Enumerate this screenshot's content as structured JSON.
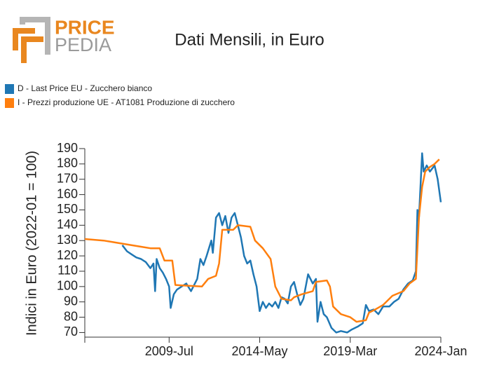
{
  "logo": {
    "top": "PRICE",
    "bottom": "PEDIA"
  },
  "chart_data": {
    "type": "line",
    "title": "Dati Mensili, in Euro",
    "y_label": "Indici in Euro (2022-01 = 100)",
    "xlim": [
      "2005-01",
      "2024-01"
    ],
    "xticks": [
      {
        "value": "2009-07",
        "label": "2009-Jul"
      },
      {
        "value": "2014-05",
        "label": "2014-May"
      },
      {
        "value": "2019-03",
        "label": "2019-Mar"
      },
      {
        "value": "2024-01",
        "label": "2024-Jan"
      }
    ],
    "ylim": [
      67,
      190
    ],
    "yticks": [
      70,
      80,
      90,
      100,
      110,
      120,
      130,
      140,
      150,
      160,
      170,
      180,
      190
    ],
    "grid": false,
    "legend": "top-left",
    "series": [
      {
        "name": "D - Last Price EU - Zucchero bianco",
        "color": "#1f77b4",
        "x": [
          "2007-01",
          "2007-04",
          "2007-07",
          "2007-10",
          "2008-01",
          "2008-04",
          "2008-07",
          "2008-09",
          "2008-10",
          "2008-11",
          "2009-01",
          "2009-03",
          "2009-05",
          "2009-07",
          "2009-08",
          "2009-10",
          "2009-12",
          "2010-03",
          "2010-06",
          "2010-09",
          "2011-01",
          "2011-03",
          "2011-05",
          "2011-07",
          "2011-10",
          "2011-11",
          "2012-01",
          "2012-03",
          "2012-05",
          "2012-07",
          "2012-09",
          "2012-11",
          "2013-01",
          "2013-03",
          "2013-05",
          "2013-07",
          "2013-09",
          "2013-11",
          "2014-01",
          "2014-03",
          "2014-05",
          "2014-07",
          "2014-09",
          "2014-11",
          "2015-01",
          "2015-03",
          "2015-05",
          "2015-07",
          "2015-09",
          "2015-11",
          "2016-01",
          "2016-03",
          "2016-05",
          "2016-07",
          "2016-09",
          "2016-12",
          "2017-03",
          "2017-05",
          "2017-06",
          "2017-08",
          "2017-10",
          "2017-12",
          "2018-03",
          "2018-06",
          "2018-09",
          "2019-01",
          "2019-04",
          "2019-08",
          "2019-11",
          "2020-01",
          "2020-03",
          "2020-06",
          "2020-09",
          "2020-12",
          "2021-04",
          "2021-07",
          "2021-10",
          "2022-01",
          "2022-04",
          "2022-07",
          "2022-09",
          "2022-10",
          "2022-11",
          "2023-01",
          "2023-02",
          "2023-04",
          "2023-06",
          "2023-09",
          "2023-11",
          "2024-01"
        ],
        "values": [
          127,
          123,
          121,
          119,
          118,
          116,
          112,
          115,
          97,
          118,
          112,
          109,
          105,
          100,
          86,
          95,
          98,
          100,
          102,
          97,
          105,
          118,
          114,
          120,
          130,
          122,
          145,
          148,
          140,
          146,
          135,
          145,
          148,
          140,
          132,
          120,
          115,
          117,
          108,
          100,
          84,
          90,
          86,
          89,
          87,
          90,
          86,
          93,
          92,
          89,
          100,
          103,
          95,
          88,
          92,
          108,
          102,
          105,
          77,
          90,
          82,
          80,
          73,
          70,
          71,
          70,
          72,
          74,
          76,
          88,
          84,
          85,
          82,
          87,
          87,
          90,
          92,
          98,
          102,
          104,
          110,
          150,
          145,
          187,
          175,
          179,
          175,
          179,
          170,
          155
        ]
      },
      {
        "name": "I - Prezzi produzione UE - AT1081 Produzione di zucchero",
        "color": "#ff7f0e",
        "x": [
          "2005-01",
          "2006-01",
          "2006-07",
          "2007-01",
          "2008-01",
          "2008-07",
          "2009-01",
          "2009-04",
          "2009-09",
          "2009-11",
          "2011-04",
          "2011-08",
          "2012-01",
          "2012-03",
          "2012-05",
          "2012-12",
          "2013-03",
          "2013-11",
          "2014-02",
          "2014-07",
          "2014-12",
          "2015-03",
          "2015-07",
          "2016-01",
          "2016-03",
          "2016-08",
          "2017-03",
          "2017-05",
          "2017-12",
          "2018-02",
          "2018-04",
          "2018-09",
          "2019-03",
          "2019-07",
          "2020-01",
          "2020-03",
          "2020-07",
          "2020-12",
          "2021-06",
          "2022-01",
          "2022-05",
          "2022-09",
          "2022-11",
          "2023-01",
          "2023-03",
          "2023-06",
          "2023-09",
          "2023-12"
        ],
        "values": [
          131,
          130,
          129,
          128,
          126,
          125,
          125,
          117,
          117,
          101,
          100,
          105,
          107,
          115,
          137,
          137,
          140,
          139,
          130,
          125,
          118,
          100,
          92,
          91,
          93,
          95,
          97,
          103,
          104,
          100,
          87,
          82,
          80,
          77,
          78,
          83,
          85,
          88,
          94,
          97,
          102,
          105,
          145,
          165,
          175,
          178,
          180,
          183
        ]
      }
    ]
  }
}
